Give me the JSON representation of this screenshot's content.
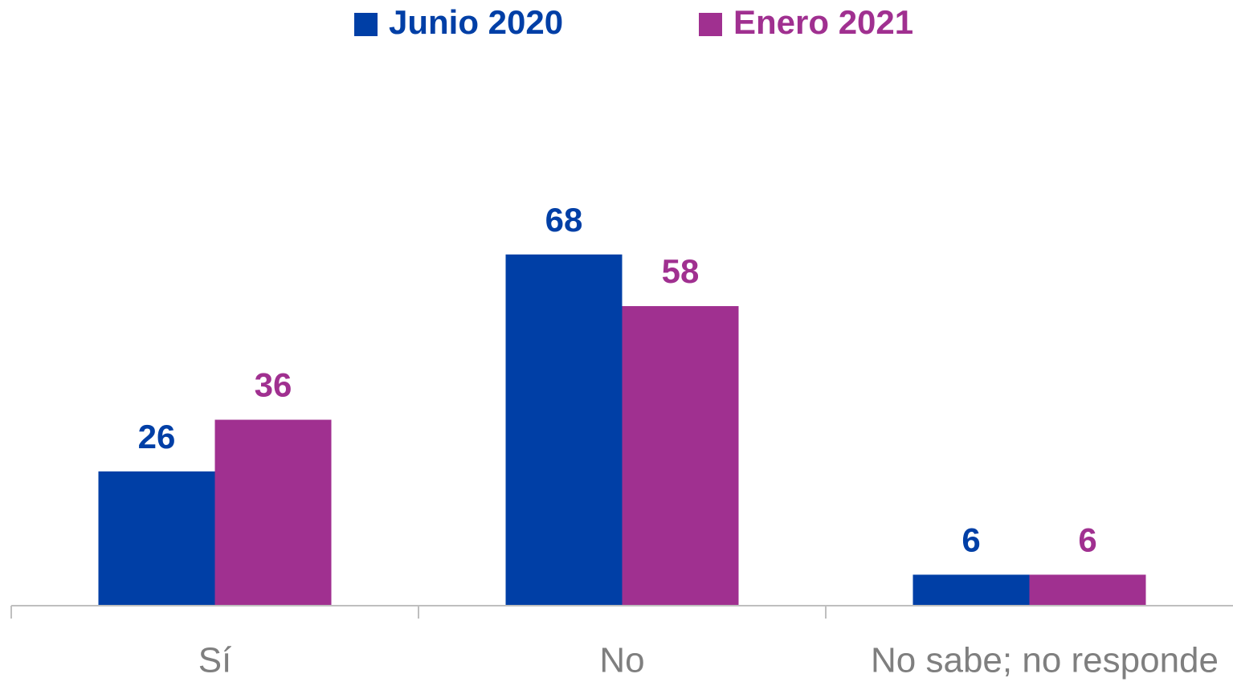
{
  "chart_data": {
    "type": "bar",
    "categories": [
      "Sí",
      "No",
      "No sabe; no responde"
    ],
    "series": [
      {
        "name": "Junio 2020",
        "color": "#003fa6",
        "values": [
          26,
          68,
          6
        ]
      },
      {
        "name": "Enero 2021",
        "color": "#a03090",
        "values": [
          36,
          58,
          6
        ]
      }
    ],
    "legend": "top"
  }
}
